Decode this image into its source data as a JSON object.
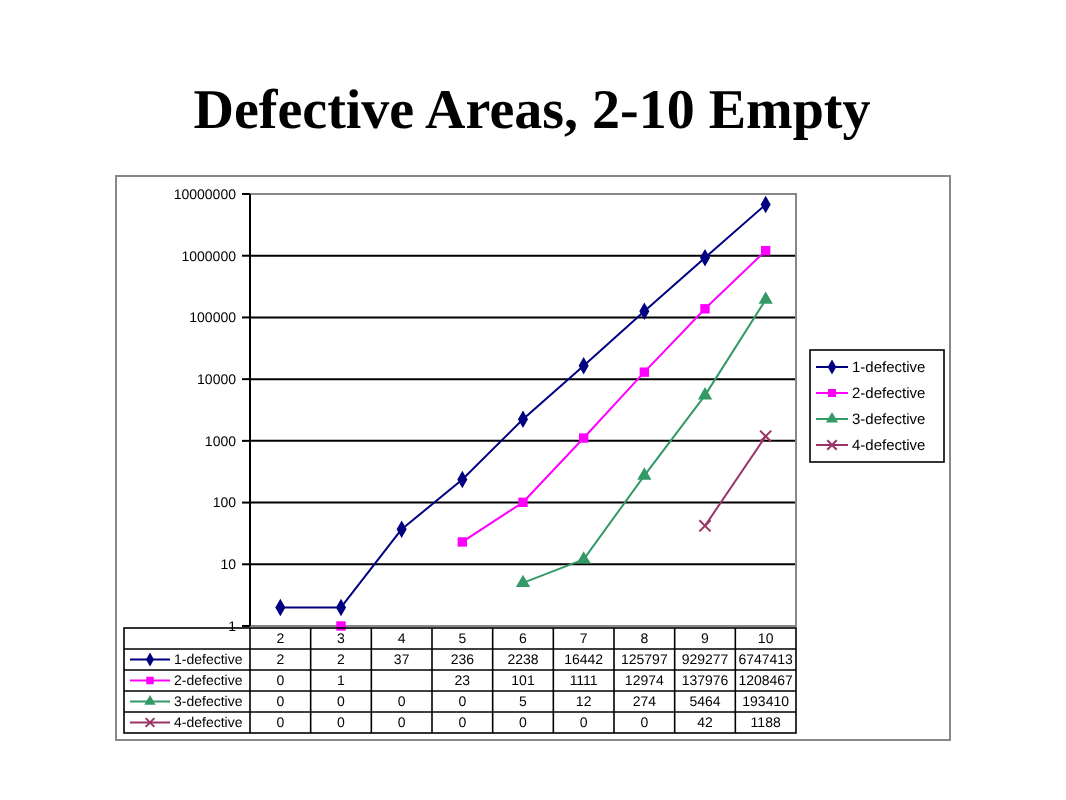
{
  "chart_data": {
    "type": "line",
    "title": "Defective Areas, 2-10 Empty",
    "categories": [
      "2",
      "3",
      "4",
      "5",
      "6",
      "7",
      "8",
      "9",
      "10"
    ],
    "log": true,
    "ylim": [
      1,
      10000000
    ],
    "yticks": [
      1,
      10,
      100,
      1000,
      10000,
      100000,
      1000000,
      10000000
    ],
    "grid": "y",
    "legend": "right",
    "data_labels": true,
    "series": [
      {
        "name": "1-defective",
        "color": "#000080",
        "marker": "diamond",
        "values": [
          2,
          2,
          37,
          236,
          2238,
          16442,
          125797,
          929277,
          6747413
        ],
        "value_labels": [
          "2",
          "2",
          "37",
          "236",
          "2238",
          "16442",
          "125797",
          "929277",
          "6747413"
        ]
      },
      {
        "name": "2-defective",
        "color": "#ff00ff",
        "marker": "square",
        "values": [
          null,
          1,
          null,
          23,
          101,
          1111,
          12974,
          137976,
          1208467
        ],
        "value_labels": [
          "0",
          "1",
          null,
          "23",
          "101",
          "1111",
          "12974",
          "137976",
          "1208467"
        ]
      },
      {
        "name": "3-defective",
        "color": "#339966",
        "marker": "triangle",
        "values": [
          null,
          null,
          null,
          null,
          5,
          12,
          274,
          5464,
          193410
        ],
        "value_labels": [
          "0",
          "0",
          "0",
          "0",
          "5",
          "12",
          "274",
          "5464",
          "193410"
        ]
      },
      {
        "name": "4-defective",
        "color": "#993366",
        "marker": "cross",
        "values": [
          null,
          null,
          null,
          null,
          null,
          null,
          null,
          42,
          1188
        ],
        "value_labels": [
          "0",
          "0",
          "0",
          "0",
          "0",
          "0",
          "0",
          "42",
          "1188"
        ]
      }
    ]
  }
}
